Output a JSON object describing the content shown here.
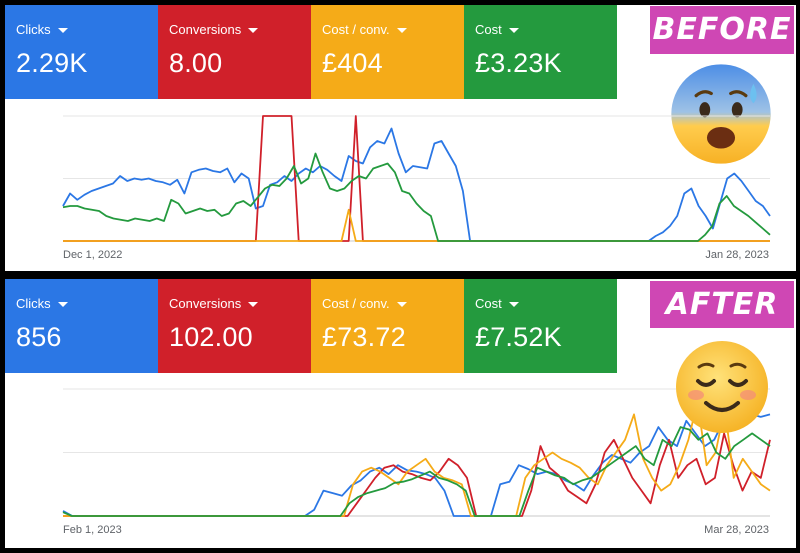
{
  "before": {
    "badge": "BEFORE",
    "tiles": [
      {
        "label": "Clicks",
        "value": "2.29K",
        "color": "#2b77e5"
      },
      {
        "label": "Conversions",
        "value": "8.00",
        "color": "#d0202a"
      },
      {
        "label": "Cost / conv.",
        "value": "£404",
        "color": "#f5ab18"
      },
      {
        "label": "Cost",
        "value": "£3.23K",
        "color": "#249a3e"
      }
    ],
    "start_date": "Dec 1, 2022",
    "end_date": "Jan 28, 2023",
    "emoji": "anxious-face-with-sweat-icon"
  },
  "after": {
    "badge": "AFTER",
    "tiles": [
      {
        "label": "Clicks",
        "value": "856",
        "color": "#2b77e5"
      },
      {
        "label": "Conversions",
        "value": "102.00",
        "color": "#d0202a"
      },
      {
        "label": "Cost / conv.",
        "value": "£73.72",
        "color": "#f5ab18"
      },
      {
        "label": "Cost",
        "value": "£7.52K",
        "color": "#249a3e"
      }
    ],
    "start_date": "Feb 1, 2023",
    "end_date": "Mar 28, 2023",
    "emoji": "smiling-face-icon"
  },
  "chart_data": [
    {
      "type": "line",
      "ylim": [
        0,
        100
      ],
      "grid": true,
      "x_start": "Dec 1, 2022",
      "x_end": "Jan 28, 2023",
      "series": [
        {
          "color": "#2b77e5",
          "values": [
            28,
            38,
            33,
            37,
            40,
            42,
            44,
            46,
            52,
            48,
            50,
            49,
            50,
            48,
            47,
            45,
            49,
            38,
            55,
            57,
            58,
            56,
            55,
            58,
            47,
            54,
            50,
            26,
            28,
            45,
            47,
            52,
            48,
            54,
            58,
            55,
            60,
            57,
            52,
            48,
            68,
            64,
            62,
            75,
            80,
            78,
            90,
            70,
            55,
            60,
            59,
            58,
            78,
            80,
            70,
            60,
            40,
            0,
            0,
            0,
            0,
            0,
            0,
            0,
            0,
            0,
            0,
            0,
            0,
            0,
            0,
            0,
            0,
            0,
            0,
            0,
            0,
            0,
            0,
            0,
            0,
            0,
            0,
            4,
            7,
            12,
            20,
            38,
            42,
            28,
            20,
            10,
            30,
            50,
            54,
            48,
            40,
            32,
            28,
            20
          ]
        },
        {
          "color": "#d0202a",
          "values": [
            0,
            0,
            0,
            0,
            0,
            0,
            0,
            0,
            0,
            0,
            0,
            0,
            0,
            0,
            0,
            0,
            0,
            0,
            0,
            0,
            0,
            0,
            0,
            0,
            0,
            0,
            0,
            0,
            100,
            100,
            100,
            100,
            100,
            0,
            0,
            0,
            0,
            0,
            0,
            0,
            0,
            100,
            0,
            0,
            0,
            0,
            0,
            0,
            0,
            0,
            0,
            0,
            0,
            0,
            0,
            0,
            0,
            0,
            0,
            0,
            0,
            0,
            0,
            0,
            0,
            0,
            0,
            0,
            0,
            0,
            0,
            0,
            0,
            0,
            0,
            0,
            0,
            0,
            0,
            0,
            0,
            0,
            0,
            0,
            0,
            0,
            0,
            0,
            0,
            0,
            0,
            0,
            0,
            0,
            0,
            0,
            0,
            0,
            0,
            0
          ]
        },
        {
          "color": "#f5ab18",
          "values": [
            0,
            0,
            0,
            0,
            0,
            0,
            0,
            0,
            0,
            0,
            0,
            0,
            0,
            0,
            0,
            0,
            0,
            0,
            0,
            0,
            0,
            0,
            0,
            0,
            0,
            0,
            0,
            0,
            0,
            0,
            0,
            0,
            0,
            0,
            0,
            0,
            0,
            0,
            0,
            0,
            25,
            0,
            0,
            0,
            0,
            0,
            0,
            0,
            0,
            0,
            0,
            0,
            0,
            0,
            0,
            0,
            0,
            0,
            0,
            0,
            0,
            0,
            0,
            0,
            0,
            0,
            0,
            0,
            0,
            0,
            0,
            0,
            0,
            0,
            0,
            0,
            0,
            0,
            0,
            0,
            0,
            0,
            0,
            0,
            0,
            0,
            0,
            0,
            0,
            0,
            0,
            0,
            0,
            0,
            0,
            0,
            0,
            0,
            0,
            0
          ]
        },
        {
          "color": "#249a3e",
          "values": [
            27,
            28,
            28,
            26,
            25,
            24,
            20,
            18,
            17,
            16,
            18,
            17,
            16,
            18,
            16,
            33,
            30,
            22,
            24,
            26,
            24,
            25,
            20,
            22,
            30,
            32,
            28,
            35,
            42,
            45,
            44,
            50,
            60,
            46,
            50,
            70,
            55,
            42,
            40,
            42,
            48,
            52,
            50,
            58,
            60,
            62,
            55,
            40,
            38,
            30,
            24,
            20,
            0,
            0,
            0,
            0,
            0,
            0,
            0,
            0,
            0,
            0,
            0,
            0,
            0,
            0,
            0,
            0,
            0,
            0,
            0,
            0,
            0,
            0,
            0,
            0,
            0,
            0,
            0,
            0,
            0,
            0,
            0,
            0,
            0,
            0,
            0,
            0,
            0,
            5,
            12,
            30,
            36,
            28,
            24,
            20,
            15,
            10,
            5
          ]
        }
      ]
    },
    {
      "type": "line",
      "ylim": [
        0,
        100
      ],
      "grid": true,
      "x_start": "Feb 1, 2023",
      "x_end": "Mar 28, 2023",
      "series": [
        {
          "color": "#2b77e5",
          "values": [
            4,
            0,
            0,
            0,
            0,
            0,
            0,
            0,
            0,
            0,
            0,
            0,
            0,
            0,
            0,
            0,
            0,
            0,
            0,
            0,
            0,
            0,
            0,
            0,
            0,
            0,
            0,
            5,
            20,
            18,
            16,
            24,
            28,
            35,
            38,
            33,
            40,
            36,
            35,
            33,
            30,
            20,
            0,
            0,
            0,
            0,
            0,
            25,
            27,
            40,
            37,
            33,
            35,
            33,
            28,
            25,
            20,
            32,
            42,
            48,
            45,
            42,
            50,
            55,
            70,
            60,
            55,
            75,
            65,
            55,
            60,
            75,
            95,
            85,
            80,
            78,
            80
          ]
        },
        {
          "color": "#d0202a",
          "values": [
            0,
            0,
            0,
            0,
            0,
            0,
            0,
            0,
            0,
            0,
            0,
            0,
            0,
            0,
            0,
            0,
            0,
            0,
            0,
            0,
            0,
            0,
            0,
            0,
            0,
            0,
            0,
            0,
            0,
            0,
            0,
            0,
            10,
            20,
            30,
            38,
            40,
            35,
            33,
            30,
            28,
            35,
            45,
            40,
            30,
            0,
            0,
            0,
            0,
            0,
            0,
            20,
            55,
            38,
            32,
            20,
            15,
            10,
            25,
            50,
            60,
            45,
            30,
            20,
            10,
            40,
            60,
            30,
            40,
            45,
            25,
            30,
            65,
            40,
            20,
            35,
            30,
            60
          ]
        },
        {
          "color": "#f5ab18",
          "values": [
            0,
            0,
            0,
            0,
            0,
            0,
            0,
            0,
            0,
            0,
            0,
            0,
            0,
            0,
            0,
            0,
            0,
            0,
            0,
            0,
            0,
            0,
            0,
            0,
            0,
            0,
            0,
            0,
            0,
            0,
            0,
            0,
            25,
            35,
            38,
            35,
            30,
            25,
            35,
            40,
            45,
            35,
            30,
            28,
            25,
            0,
            0,
            0,
            0,
            0,
            0,
            30,
            40,
            45,
            50,
            45,
            42,
            38,
            30,
            25,
            40,
            50,
            60,
            80,
            45,
            30,
            20,
            25,
            40,
            60,
            90,
            40,
            50,
            85,
            30,
            45,
            35,
            25,
            20
          ]
        },
        {
          "color": "#249a3e",
          "values": [
            3,
            0,
            0,
            0,
            0,
            0,
            0,
            0,
            0,
            0,
            0,
            0,
            0,
            0,
            0,
            0,
            0,
            0,
            0,
            0,
            0,
            0,
            0,
            0,
            0,
            0,
            0,
            0,
            0,
            0,
            0,
            0,
            10,
            15,
            18,
            20,
            22,
            26,
            27,
            29,
            32,
            35,
            30,
            28,
            25,
            20,
            0,
            0,
            0,
            0,
            0,
            0,
            20,
            38,
            35,
            32,
            30,
            25,
            28,
            30,
            35,
            40,
            45,
            50,
            55,
            45,
            40,
            60,
            55,
            70,
            68,
            60,
            65,
            50,
            45,
            55,
            60,
            65,
            60,
            55
          ]
        }
      ]
    }
  ]
}
